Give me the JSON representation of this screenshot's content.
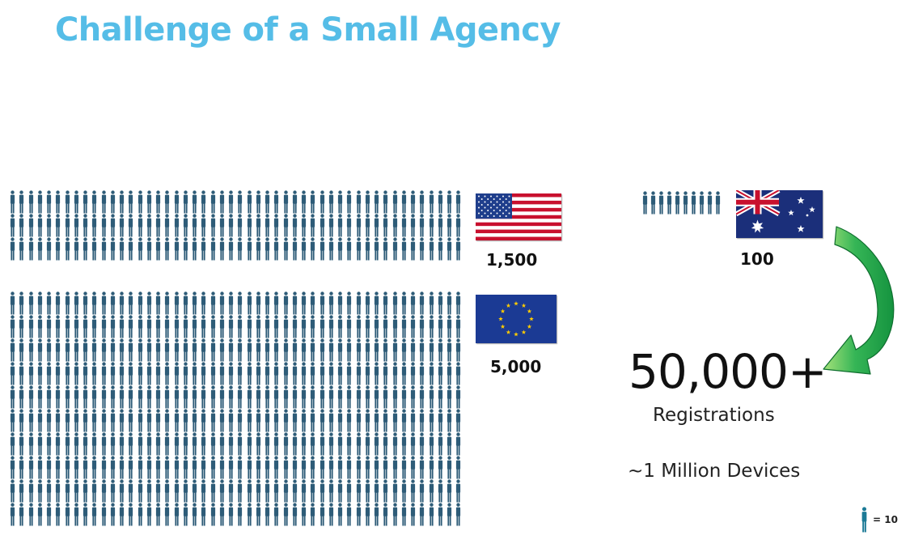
{
  "slide": {
    "title": "Challenge of a Small Agency"
  },
  "regions": [
    {
      "id": "usa",
      "flag_icon": "usa-flag-icon",
      "count_label": "1,500",
      "people_icons": 150
    },
    {
      "id": "eu",
      "flag_icon": "eu-flag-icon",
      "count_label": "5,000",
      "people_icons": 500
    },
    {
      "id": "australia",
      "flag_icon": "australia-flag-icon",
      "count_label": "100",
      "people_icons": 10
    }
  ],
  "result": {
    "registrations_value": "50,000+",
    "registrations_label": "Registrations",
    "devices_label": "~1 Million Devices"
  },
  "legend": {
    "icon": "person-icon",
    "label": "= 10"
  },
  "colors": {
    "title": "#55bde7",
    "people": "#2e5c78",
    "legend_person": "#1b7a96",
    "arrow_fill": "#1aa34a",
    "arrow_light": "#a6e27a"
  }
}
